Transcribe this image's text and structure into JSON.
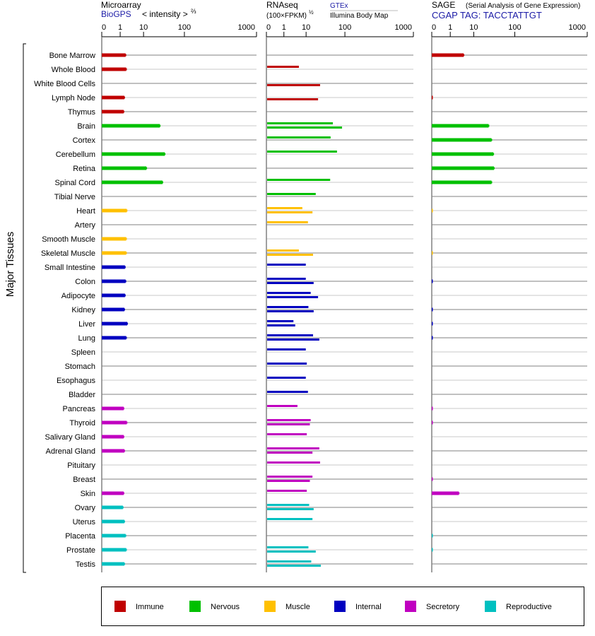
{
  "chart_data": {
    "type": "bar",
    "ylabel": "Major Tissues",
    "tissues": [
      "Bone Marrow",
      "Whole Blood",
      "White Blood Cells",
      "Lymph Node",
      "Thymus",
      "Brain",
      "Cortex",
      "Cerebellum",
      "Retina",
      "Spinal Cord",
      "Tibial Nerve",
      "Heart",
      "Artery",
      "Smooth Muscle",
      "Skeletal Muscle",
      "Small Intestine",
      "Colon",
      "Adipocyte",
      "Kidney",
      "Liver",
      "Lung",
      "Spleen",
      "Stomach",
      "Esophagus",
      "Bladder",
      "Pancreas",
      "Thyroid",
      "Salivary Gland",
      "Adrenal Gland",
      "Pituitary",
      "Breast",
      "Skin",
      "Ovary",
      "Uterus",
      "Placenta",
      "Prostate",
      "Testis"
    ],
    "tissue_groups": [
      "immune",
      "immune",
      "immune",
      "immune",
      "immune",
      "nervous",
      "nervous",
      "nervous",
      "nervous",
      "nervous",
      "nervous",
      "muscle",
      "muscle",
      "muscle",
      "muscle",
      "internal",
      "internal",
      "internal",
      "internal",
      "internal",
      "internal",
      "internal",
      "internal",
      "internal",
      "internal",
      "secretory",
      "secretory",
      "secretory",
      "secretory",
      "secretory",
      "secretory",
      "secretory",
      "reproductive",
      "reproductive",
      "reproductive",
      "reproductive",
      "reproductive"
    ],
    "axis_ticks": [
      0,
      1,
      10,
      100,
      1000
    ],
    "axis_tick_labels": [
      "0",
      "1",
      "10",
      "100",
      "1000"
    ],
    "xlim": [
      0,
      1000
    ],
    "panels": {
      "microarray": {
        "title": "Microarray",
        "source": "BioGPS",
        "scale_label": "< intensity >",
        "scale_exp": "⅔",
        "values": [
          1.7,
          1.8,
          null,
          1.5,
          1.4,
          25,
          null,
          33,
          11.7,
          29,
          null,
          1.9,
          null,
          1.8,
          1.8,
          1.6,
          1.7,
          1.6,
          1.5,
          2.0,
          1.8,
          null,
          null,
          null,
          null,
          1.4,
          1.9,
          1.4,
          1.5,
          null,
          null,
          1.4,
          1.3,
          1.5,
          1.7,
          1.8,
          1.5
        ]
      },
      "rnaseq": {
        "title": "RNAseq",
        "scale_label": "(100×FPKM)",
        "scale_exp": "½",
        "source_top": "GTEx",
        "source_bottom": "Illumina Body Map",
        "gtex": [
          null,
          4.4,
          null,
          null,
          null,
          47,
          41,
          60,
          null,
          40,
          17,
          6.3,
          10.7,
          null,
          4.4,
          9,
          9,
          12.6,
          11,
          2.5,
          14.5,
          9,
          10,
          9,
          10.7,
          3.8,
          12.6,
          10,
          21,
          22,
          14,
          10,
          11.5,
          14,
          null,
          11,
          13
        ],
        "illumina": [
          null,
          null,
          22,
          19.5,
          null,
          81,
          null,
          null,
          null,
          null,
          null,
          14,
          null,
          null,
          14.5,
          null,
          15,
          19.5,
          15,
          3,
          21,
          null,
          null,
          null,
          null,
          null,
          12,
          null,
          14,
          null,
          12,
          null,
          15,
          null,
          null,
          17,
          23
        ]
      },
      "sage": {
        "title": "SAGE",
        "subtitle": "(Serial Analysis of Gene Expression)",
        "tag_label": "CGAP TAG: TACCTATTGT",
        "values": [
          3.7,
          null,
          null,
          0.05,
          null,
          23,
          27,
          30,
          31,
          27,
          null,
          0.05,
          null,
          null,
          0.05,
          null,
          0.05,
          null,
          0.05,
          0.05,
          0.05,
          null,
          null,
          null,
          null,
          0.05,
          0.05,
          null,
          null,
          null,
          0.05,
          2.3,
          null,
          null,
          0.05,
          0.05,
          null
        ]
      }
    },
    "legend": [
      {
        "key": "immune",
        "label": "Immune",
        "color": "#c00000"
      },
      {
        "key": "nervous",
        "label": "Nervous",
        "color": "#00c000"
      },
      {
        "key": "muscle",
        "label": "Muscle",
        "color": "#ffc000"
      },
      {
        "key": "internal",
        "label": "Internal",
        "color": "#0000c0"
      },
      {
        "key": "secretory",
        "label": "Secretory",
        "color": "#c000c0"
      },
      {
        "key": "reproductive",
        "label": "Reproductive",
        "color": "#00c0c0"
      }
    ],
    "legend_placement": "bottom",
    "link_color": "#1a1aa6"
  }
}
